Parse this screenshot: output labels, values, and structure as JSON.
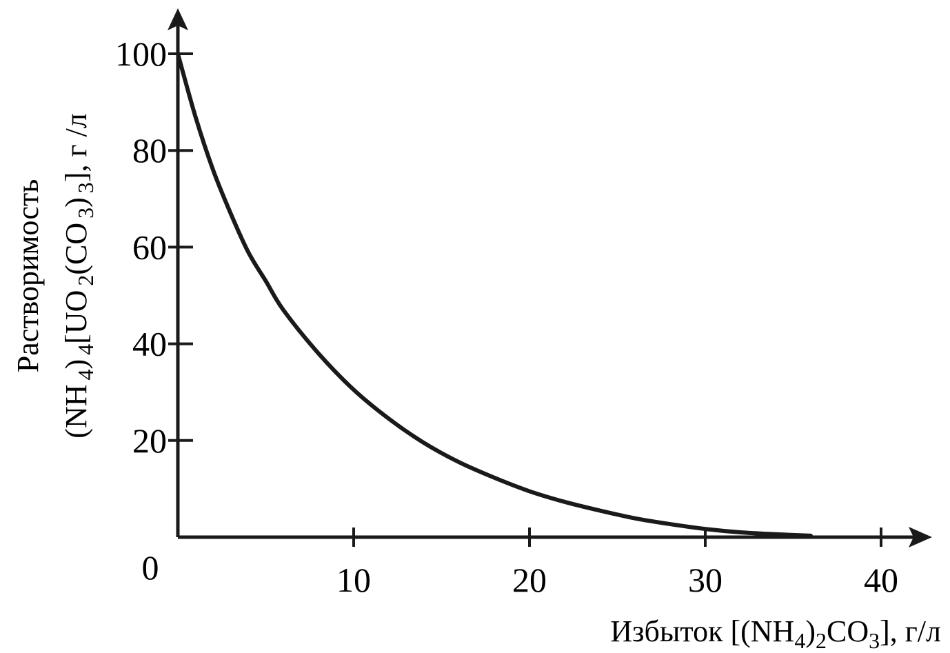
{
  "chart_data": {
    "type": "line",
    "title": "",
    "xlabel": {
      "prefix": "Избыток [(NH",
      "sub1": "4",
      "mid1": ")",
      "sub2": "2",
      "mid2": "CO",
      "sub3": "3",
      "suffix": "],  г/л"
    },
    "ylabel_line1": "Растворимость",
    "ylabel_line2": {
      "p1": "(NH",
      "s1": "4",
      "p2": ")",
      "s2": "4",
      "p3": "[UO",
      "s3": "2",
      "p4": "(CO",
      "s4": "3",
      "p5": ")",
      "s5": "3",
      "p6": "], г /л"
    },
    "origin_label": "0",
    "x_ticks": [
      "10",
      "20",
      "30",
      "40"
    ],
    "y_ticks": [
      "20",
      "40",
      "60",
      "80",
      "100"
    ],
    "xlim": [
      0,
      42
    ],
    "ylim": [
      0,
      102
    ],
    "grid": false,
    "series": [
      {
        "color": "#1a1a1a",
        "x": [
          0,
          1,
          2,
          3,
          4,
          5,
          6,
          8,
          10,
          12,
          14,
          16,
          18,
          20,
          22,
          24,
          26,
          28,
          30,
          32,
          34,
          36
        ],
        "y": [
          100,
          87,
          76,
          67,
          59,
          53,
          47,
          38,
          30.5,
          24.5,
          19.5,
          15.5,
          12.3,
          9.5,
          7.3,
          5.5,
          3.9,
          2.7,
          1.7,
          1,
          0.6,
          0.3
        ]
      }
    ]
  }
}
